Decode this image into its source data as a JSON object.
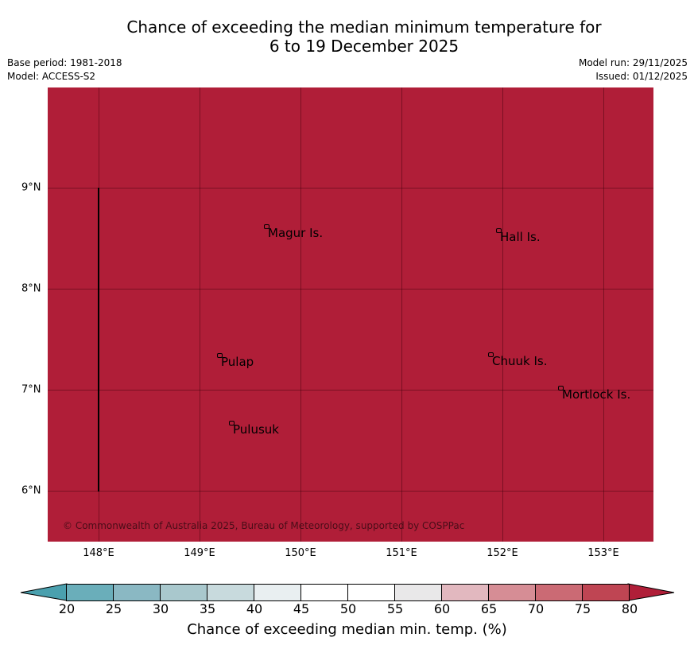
{
  "title_line1": "Chance of exceeding the median minimum temperature for",
  "title_line2": "6 to 19 December 2025",
  "base_period": "Base period: 1981-2018",
  "model": "Model: ACCESS-S2",
  "model_run": "Model run: 29/11/2025",
  "issued": "Issued: 01/12/2025",
  "map": {
    "fill_color": "#b01e38",
    "x_ticks": [
      "148°E",
      "149°E",
      "150°E",
      "151°E",
      "152°E",
      "153°E"
    ],
    "y_ticks": [
      "9°N",
      "8°N",
      "7°N",
      "6°N"
    ],
    "places": [
      "Magur Is.",
      "Hall Is.",
      "Pulap",
      "Chuuk Is.",
      "Mortlock Is.",
      "Pulusuk"
    ],
    "copyright": "© Commonwealth of Australia 2025, Bureau of Meteorology, supported by COSPPac"
  },
  "colorbar": {
    "ticks": [
      "20",
      "25",
      "30",
      "35",
      "40",
      "45",
      "50",
      "55",
      "60",
      "65",
      "70",
      "75",
      "80"
    ],
    "colors": [
      "#6aaeba",
      "#8ab8c3",
      "#a9c8cd",
      "#c8dadd",
      "#e9eff1",
      "#ffffff",
      "#ffffff",
      "#e9e8e9",
      "#e2b8bf",
      "#d68d95",
      "#cb6a74",
      "#bf4553"
    ],
    "under_color": "#4aa0ae",
    "over_color": "#b01e38",
    "label": "Chance of exceeding median min. temp. (%)"
  }
}
